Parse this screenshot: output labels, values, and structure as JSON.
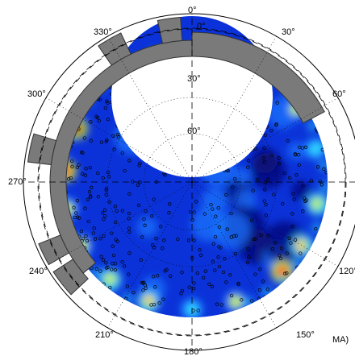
{
  "chart_data": {
    "type": "heatmap",
    "projection": "polar",
    "angular_tick_labels": [
      "0°",
      "30°",
      "60°",
      "120°",
      "150°",
      "180°",
      "210°",
      "240°",
      "270°",
      "300°",
      "330°"
    ],
    "radial_tick_labels": [
      "0°",
      "30°",
      "60°"
    ],
    "corner_label": "MA)",
    "grid": true,
    "colormap": [
      "#08086e",
      "#0a1fd8",
      "#1a78ff",
      "#30d8ff",
      "#c8f040",
      "#ffd000",
      "#ff4400",
      "#b00000"
    ],
    "hot_regions": [
      {
        "angle": 295,
        "value": 0.95
      },
      {
        "angle": 275,
        "value": 0.9
      },
      {
        "angle": 258,
        "value": 0.55
      },
      {
        "angle": 240,
        "value": 0.5
      },
      {
        "angle": 220,
        "value": 0.6
      },
      {
        "angle": 200,
        "value": 0.7
      },
      {
        "angle": 180,
        "value": 0.45
      },
      {
        "angle": 160,
        "value": 0.55
      },
      {
        "angle": 135,
        "value": 0.9
      },
      {
        "angle": 120,
        "value": 0.75
      },
      {
        "angle": 100,
        "value": 0.6
      },
      {
        "angle": 75,
        "value": 0.45
      },
      {
        "angle": 55,
        "value": 0.55
      }
    ]
  }
}
